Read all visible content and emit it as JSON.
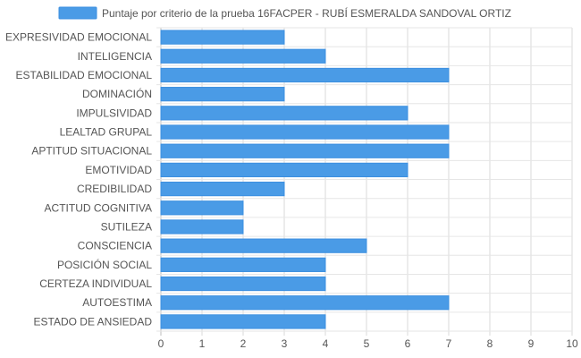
{
  "chart_data": {
    "type": "bar",
    "orientation": "horizontal",
    "legend": {
      "position": "top",
      "label": "Puntaje por criterio de la prueba 16FACPER - RUBÍ ESMERALDA SANDOVAL ORTIZ",
      "color": "#4a9be6"
    },
    "bar_color": "#4a9be6",
    "bar_border_color": "#3b8fe0",
    "grid": true,
    "xlim": [
      0,
      10
    ],
    "xticks": [
      "0",
      "1",
      "2",
      "3",
      "4",
      "5",
      "6",
      "7",
      "8",
      "9",
      "10"
    ],
    "categories": [
      "EXPRESIVIDAD EMOCIONAL",
      "INTELIGENCIA",
      "ESTABILIDAD EMOCIONAL",
      "DOMINACIÓN",
      "IMPULSIVIDAD",
      "LEALTAD GRUPAL",
      "APTITUD SITUACIONAL",
      "EMOTIVIDAD",
      "CREDIBILIDAD",
      "ACTITUD COGNITIVA",
      "SUTILEZA",
      "CONSCIENCIA",
      "POSICIÓN SOCIAL",
      "CERTEZA INDIVIDUAL",
      "AUTOESTIMA",
      "ESTADO DE ANSIEDAD"
    ],
    "values": [
      3,
      4,
      7,
      3,
      6,
      7,
      7,
      6,
      3,
      2,
      2,
      5,
      4,
      4,
      7,
      4
    ]
  }
}
